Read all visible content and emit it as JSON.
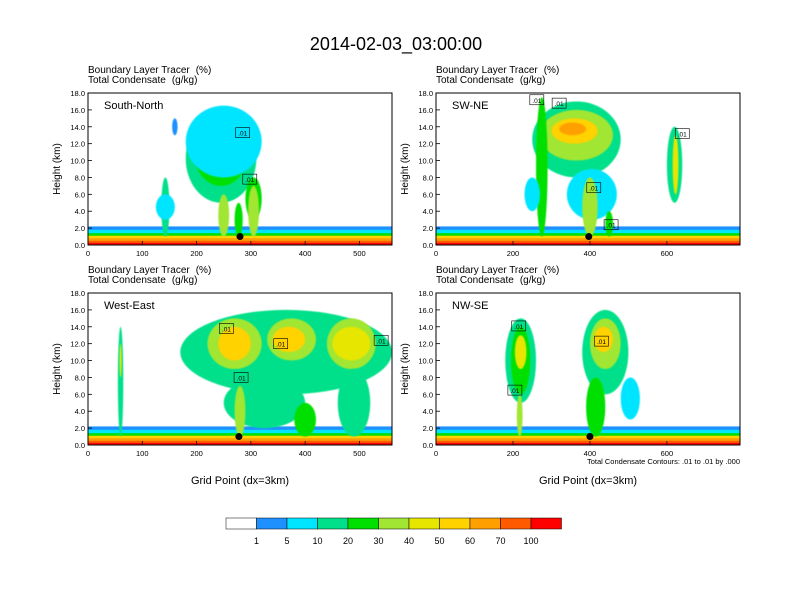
{
  "title": "2014-02-03_03:00:00",
  "panel_header": {
    "line1": "Boundary Layer Tracer",
    "line1_unit": "(%)",
    "line2": "Total Condensate",
    "line2_unit": "(g/kg)"
  },
  "ylabel": "Height (km)",
  "xlabel": "Grid Point (dx=3km)",
  "contour_note": "Total Condensate Contours: .01 to .01 by .000",
  "colorbar": {
    "labels": [
      "1",
      "5",
      "10",
      "20",
      "30",
      "40",
      "50",
      "60",
      "70",
      "100"
    ],
    "colors": [
      "#ffffff",
      "#1e90ff",
      "#00e5ff",
      "#00e08a",
      "#00e000",
      "#a0e632",
      "#e6e600",
      "#ffd200",
      "#ffa000",
      "#ff5a00",
      "#ff0000"
    ]
  },
  "chart_data": [
    {
      "type": "heatmap",
      "label": "South-North",
      "xlim": [
        0,
        560
      ],
      "ylim": [
        0,
        18
      ],
      "xticks": [
        0,
        100,
        200,
        300,
        400,
        500
      ],
      "yticks": [
        "0.0",
        "2.0",
        "4.0",
        "6.0",
        "8.0",
        "10.0",
        "12.0",
        "14.0",
        "16.0",
        "18.0"
      ],
      "marker": {
        "x": 280,
        "y": 1.0
      },
      "contour_labels": [
        {
          "text": ".01",
          "x": 285,
          "y": 13.3
        },
        {
          "text": ".01",
          "x": 298,
          "y": 7.8
        }
      ]
    },
    {
      "type": "heatmap",
      "label": "SW-NE",
      "xlim": [
        0,
        790
      ],
      "ylim": [
        0,
        18
      ],
      "xticks": [
        0,
        200,
        400,
        600
      ],
      "yticks": [
        "0.0",
        "2.0",
        "4.0",
        "6.0",
        "8.0",
        "10.0",
        "12.0",
        "14.0",
        "16.0",
        "18.0"
      ],
      "marker": {
        "x": 397,
        "y": 1.0
      },
      "contour_labels": [
        {
          "text": ".01",
          "x": 262,
          "y": 17.2
        },
        {
          "text": ".01",
          "x": 320,
          "y": 16.8
        },
        {
          "text": ".01",
          "x": 410,
          "y": 6.8
        },
        {
          "text": ".01",
          "x": 455,
          "y": 2.4
        },
        {
          "text": ".01",
          "x": 640,
          "y": 13.2
        }
      ]
    },
    {
      "type": "heatmap",
      "label": "West-East",
      "xlim": [
        0,
        560
      ],
      "ylim": [
        0,
        18
      ],
      "xticks": [
        0,
        100,
        200,
        300,
        400,
        500
      ],
      "yticks": [
        "0.0",
        "2.0",
        "4.0",
        "6.0",
        "8.0",
        "10.0",
        "12.0",
        "14.0",
        "16.0",
        "18.0"
      ],
      "marker": {
        "x": 278,
        "y": 1.0
      },
      "contour_labels": [
        {
          "text": ".01",
          "x": 255,
          "y": 13.8
        },
        {
          "text": ".01",
          "x": 355,
          "y": 12.0
        },
        {
          "text": ".01",
          "x": 282,
          "y": 8.0
        },
        {
          "text": ".01",
          "x": 540,
          "y": 12.4
        }
      ]
    },
    {
      "type": "heatmap",
      "label": "NW-SE",
      "xlim": [
        0,
        790
      ],
      "ylim": [
        0,
        18
      ],
      "xticks": [
        0,
        200,
        400,
        600
      ],
      "yticks": [
        "0.0",
        "2.0",
        "4.0",
        "6.0",
        "8.0",
        "10.0",
        "12.0",
        "14.0",
        "16.0",
        "18.0"
      ],
      "marker": {
        "x": 400,
        "y": 1.0
      },
      "contour_labels": [
        {
          "text": ".01",
          "x": 215,
          "y": 14.1
        },
        {
          "text": ".01",
          "x": 430,
          "y": 12.3
        },
        {
          "text": ".01",
          "x": 205,
          "y": 6.5
        }
      ]
    }
  ]
}
